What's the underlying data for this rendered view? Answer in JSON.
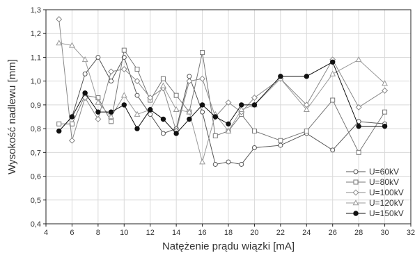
{
  "chart_data": {
    "type": "line",
    "xlabel": "Natężenie prądu wiązki [mA]",
    "ylabel": "Wysokość nadlewu [mm]",
    "xlim": [
      4,
      32
    ],
    "ylim": [
      0.4,
      1.3
    ],
    "xticks": [
      4,
      6,
      8,
      10,
      12,
      14,
      16,
      18,
      20,
      22,
      24,
      26,
      28,
      30,
      32
    ],
    "yticks": [
      0.4,
      0.5,
      0.6,
      0.7,
      0.8,
      0.9,
      1.0,
      1.1,
      1.2,
      1.3
    ],
    "xtick_labels": [
      "4",
      "6",
      "8",
      "10",
      "12",
      "14",
      "16",
      "18",
      "20",
      "22",
      "24",
      "26",
      "28",
      "30",
      "32"
    ],
    "ytick_labels": [
      "0,4",
      "0,5",
      "0,6",
      "0,7",
      "0,8",
      "0,9",
      "1,0",
      "1,1",
      "1,2",
      "1,3"
    ],
    "grid": true,
    "legend_position": "bottom-right",
    "series": [
      {
        "name": "U=60kV",
        "marker": "circle-open",
        "color": "#555555",
        "x": [
          5,
          6,
          7,
          8,
          9,
          10,
          11,
          12,
          13,
          14,
          15,
          16,
          17,
          18,
          19,
          20,
          22,
          24,
          26,
          28,
          30
        ],
        "y": [
          0.79,
          0.85,
          1.03,
          1.1,
          1.0,
          1.1,
          0.94,
          0.86,
          0.78,
          0.8,
          1.02,
          0.87,
          0.65,
          0.66,
          0.65,
          0.72,
          0.73,
          0.78,
          0.71,
          0.83,
          0.82
        ]
      },
      {
        "name": "U=80kV",
        "marker": "square-open",
        "color": "#777777",
        "x": [
          5,
          6,
          7,
          8,
          9,
          10,
          11,
          12,
          13,
          14,
          15,
          16,
          17,
          18,
          19,
          20,
          22,
          24,
          26,
          28,
          30
        ],
        "y": [
          0.82,
          0.82,
          0.94,
          0.93,
          0.83,
          1.13,
          1.05,
          0.92,
          1.01,
          0.94,
          0.87,
          1.12,
          0.77,
          0.79,
          0.86,
          0.79,
          0.75,
          0.79,
          0.92,
          0.7,
          0.87
        ]
      },
      {
        "name": "U=100kV",
        "marker": "diamond-open",
        "color": "#888888",
        "x": [
          5,
          6,
          7,
          8,
          9,
          10,
          11,
          12,
          13,
          14,
          15,
          16,
          17,
          18,
          19,
          20,
          22,
          24,
          26,
          28,
          30
        ],
        "y": [
          1.26,
          0.75,
          0.93,
          0.84,
          1.04,
          1.05,
          1.0,
          0.93,
          0.97,
          0.79,
          1.0,
          1.01,
          0.85,
          0.91,
          0.87,
          0.93,
          1.01,
          0.9,
          1.09,
          0.89,
          0.96
        ]
      },
      {
        "name": "U=120kV",
        "marker": "triangle-open",
        "color": "#999999",
        "x": [
          5,
          6,
          7,
          8,
          9,
          10,
          11,
          12,
          13,
          14,
          15,
          16,
          17,
          18,
          19,
          20,
          22,
          24,
          26,
          28,
          30
        ],
        "y": [
          1.16,
          1.15,
          1.09,
          0.91,
          0.85,
          0.94,
          0.86,
          0.88,
          0.98,
          0.88,
          0.87,
          0.66,
          0.86,
          0.79,
          0.88,
          0.9,
          1.01,
          0.88,
          1.03,
          1.09,
          0.99
        ]
      },
      {
        "name": "U=150kV",
        "marker": "circle-filled",
        "color": "#111111",
        "x": [
          5,
          6,
          7,
          8,
          9,
          10,
          11,
          12,
          13,
          14,
          15,
          16,
          17,
          18,
          19,
          20,
          22,
          24,
          26,
          28,
          30
        ],
        "y": [
          0.79,
          0.85,
          0.95,
          0.87,
          0.87,
          0.9,
          0.8,
          0.88,
          0.84,
          0.78,
          0.84,
          0.9,
          0.85,
          0.82,
          0.9,
          0.9,
          1.02,
          1.02,
          1.08,
          0.81,
          0.81
        ]
      }
    ]
  }
}
